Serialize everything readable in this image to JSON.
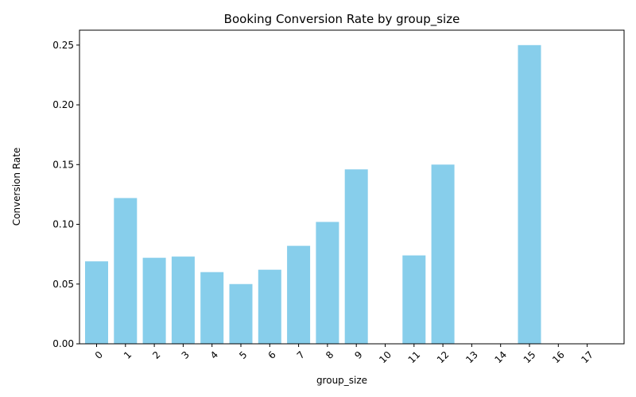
{
  "chart_data": {
    "type": "bar",
    "title": "Booking Conversion Rate by group_size",
    "xlabel": "group_size",
    "ylabel": "Conversion Rate",
    "categories": [
      "0",
      "1",
      "2",
      "3",
      "4",
      "5",
      "6",
      "7",
      "8",
      "9",
      "10",
      "11",
      "12",
      "13",
      "14",
      "15",
      "16",
      "17"
    ],
    "values": [
      0.069,
      0.122,
      0.072,
      0.073,
      0.06,
      0.05,
      0.062,
      0.082,
      0.102,
      0.146,
      0.0,
      0.074,
      0.15,
      0.0,
      0.0,
      0.25,
      0.0,
      0.0
    ],
    "ylim": [
      0,
      0.2625
    ],
    "yticks": [
      "0.00",
      "0.05",
      "0.10",
      "0.15",
      "0.20",
      "0.25"
    ],
    "ytick_values": [
      0,
      0.05,
      0.1,
      0.15,
      0.2,
      0.25
    ],
    "bar_color": "#87ceeb",
    "grid": false,
    "legend": "none"
  }
}
